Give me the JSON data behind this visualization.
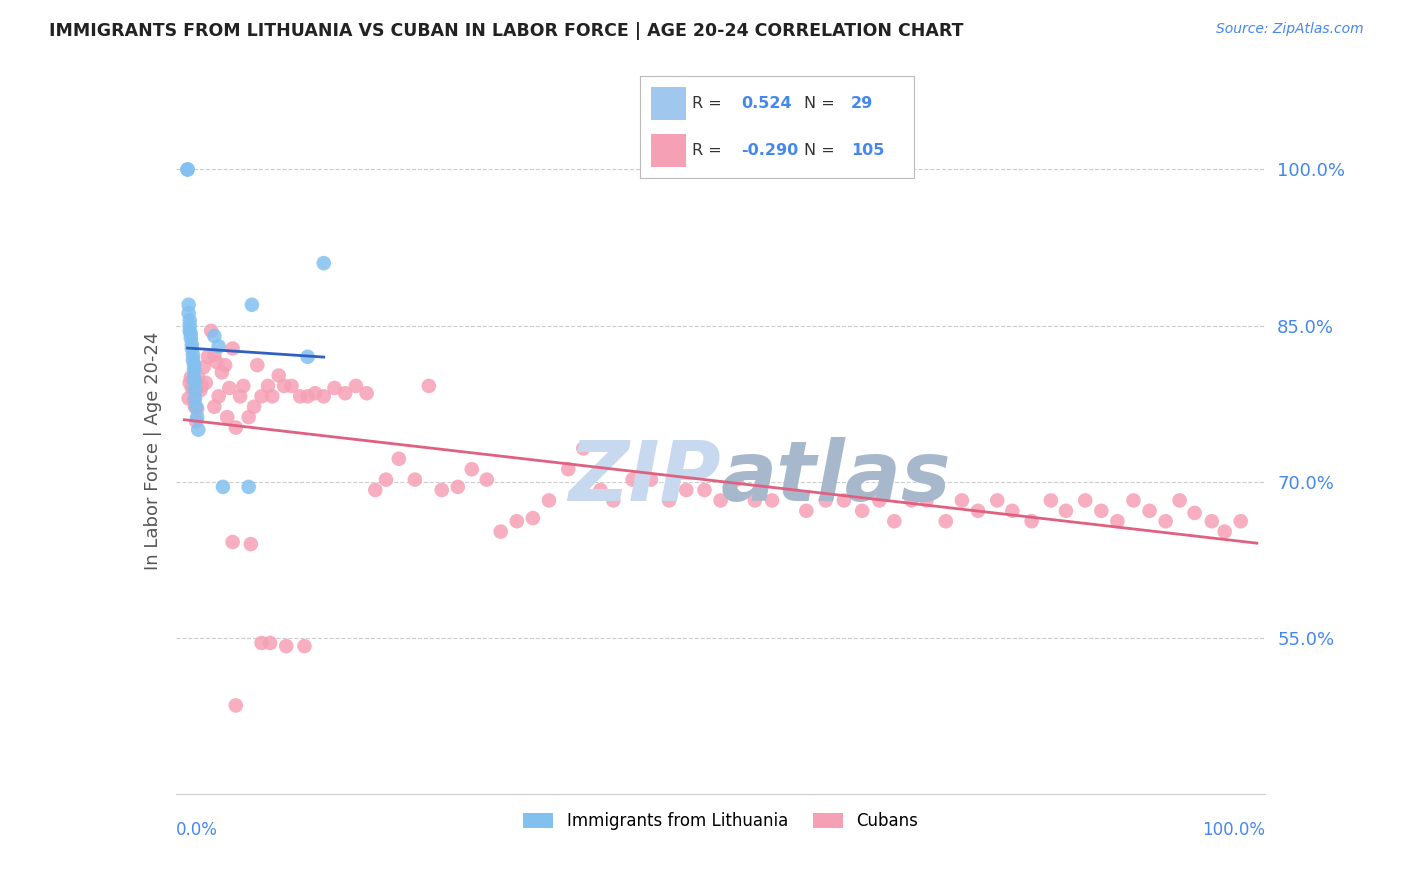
{
  "title": "IMMIGRANTS FROM LITHUANIA VS CUBAN IN LABOR FORCE | AGE 20-24 CORRELATION CHART",
  "source_text": "Source: ZipAtlas.com",
  "ylabel": "In Labor Force | Age 20-24",
  "right_yticks": [
    0.55,
    0.7,
    0.85,
    1.0
  ],
  "right_yticklabels": [
    "55.0%",
    "70.0%",
    "85.0%",
    "100.0%"
  ],
  "ylim": [
    0.4,
    1.06
  ],
  "xlim": [
    -0.008,
    1.008
  ],
  "blue_color": "#82C0F0",
  "pink_color": "#F5A0B5",
  "blue_line_color": "#3060C0",
  "pink_line_color": "#E06080",
  "background_color": "#FFFFFF",
  "grid_color": "#CCCCCC",
  "title_color": "#222222",
  "right_tick_color": "#4488EE",
  "watermark_zip_color": "#C8D8EE",
  "watermark_atlas_color": "#A8B8CC",
  "legend_box_blue": "#A0C8EE",
  "legend_box_pink": "#F5A0B5",
  "blue_x": [
    0.003,
    0.003,
    0.004,
    0.004,
    0.005,
    0.005,
    0.005,
    0.006,
    0.006,
    0.007,
    0.007,
    0.008,
    0.008,
    0.009,
    0.009,
    0.009,
    0.01,
    0.01,
    0.01,
    0.011,
    0.012,
    0.013,
    0.028,
    0.032,
    0.036,
    0.06,
    0.063,
    0.115,
    0.13
  ],
  "blue_y": [
    1.0,
    1.0,
    0.87,
    0.862,
    0.855,
    0.85,
    0.845,
    0.842,
    0.838,
    0.832,
    0.828,
    0.822,
    0.817,
    0.812,
    0.807,
    0.8,
    0.795,
    0.788,
    0.78,
    0.772,
    0.762,
    0.75,
    0.84,
    0.83,
    0.695,
    0.695,
    0.87,
    0.82,
    0.91
  ],
  "pink_x": [
    0.004,
    0.005,
    0.006,
    0.007,
    0.008,
    0.009,
    0.01,
    0.011,
    0.012,
    0.013,
    0.015,
    0.016,
    0.018,
    0.02,
    0.022,
    0.025,
    0.028,
    0.03,
    0.032,
    0.035,
    0.038,
    0.04,
    0.042,
    0.045,
    0.048,
    0.052,
    0.055,
    0.06,
    0.065,
    0.068,
    0.072,
    0.078,
    0.082,
    0.088,
    0.093,
    0.1,
    0.108,
    0.115,
    0.122,
    0.13,
    0.14,
    0.15,
    0.16,
    0.17,
    0.178,
    0.188,
    0.2,
    0.215,
    0.228,
    0.24,
    0.255,
    0.268,
    0.282,
    0.295,
    0.31,
    0.325,
    0.34,
    0.358,
    0.372,
    0.388,
    0.4,
    0.418,
    0.435,
    0.452,
    0.468,
    0.485,
    0.5,
    0.515,
    0.532,
    0.548,
    0.565,
    0.58,
    0.598,
    0.615,
    0.632,
    0.648,
    0.662,
    0.678,
    0.692,
    0.71,
    0.725,
    0.74,
    0.758,
    0.772,
    0.79,
    0.808,
    0.822,
    0.84,
    0.855,
    0.87,
    0.885,
    0.9,
    0.915,
    0.928,
    0.942,
    0.958,
    0.97,
    0.985,
    0.028,
    0.045,
    0.062,
    0.08,
    0.095,
    0.112,
    0.048,
    0.072
  ],
  "pink_y": [
    0.78,
    0.795,
    0.8,
    0.79,
    0.795,
    0.778,
    0.772,
    0.758,
    0.77,
    0.8,
    0.788,
    0.792,
    0.81,
    0.795,
    0.82,
    0.845,
    0.772,
    0.815,
    0.782,
    0.805,
    0.812,
    0.762,
    0.79,
    0.828,
    0.752,
    0.782,
    0.792,
    0.762,
    0.772,
    0.812,
    0.782,
    0.792,
    0.782,
    0.802,
    0.792,
    0.792,
    0.782,
    0.782,
    0.785,
    0.782,
    0.79,
    0.785,
    0.792,
    0.785,
    0.692,
    0.702,
    0.722,
    0.702,
    0.792,
    0.692,
    0.695,
    0.712,
    0.702,
    0.652,
    0.662,
    0.665,
    0.682,
    0.712,
    0.732,
    0.692,
    0.682,
    0.702,
    0.702,
    0.682,
    0.692,
    0.692,
    0.682,
    0.702,
    0.682,
    0.682,
    0.692,
    0.672,
    0.682,
    0.682,
    0.672,
    0.682,
    0.662,
    0.682,
    0.682,
    0.662,
    0.682,
    0.672,
    0.682,
    0.672,
    0.662,
    0.682,
    0.672,
    0.682,
    0.672,
    0.662,
    0.682,
    0.672,
    0.662,
    0.682,
    0.67,
    0.662,
    0.652,
    0.662,
    0.822,
    0.642,
    0.64,
    0.545,
    0.542,
    0.542,
    0.485,
    0.545
  ]
}
